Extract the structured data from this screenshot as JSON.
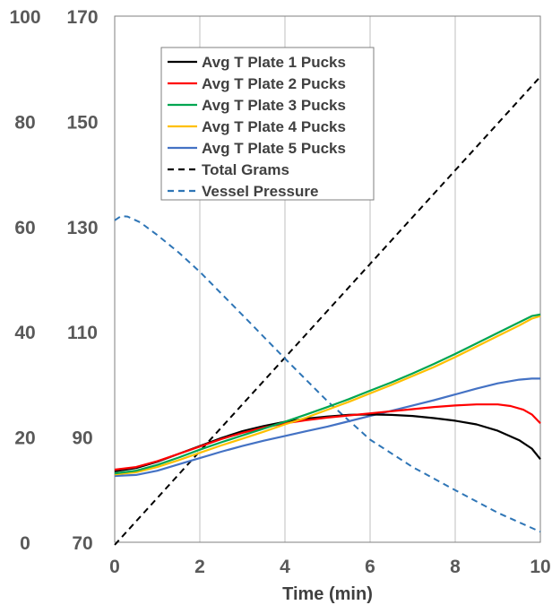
{
  "chart_data": {
    "type": "line",
    "title": "",
    "xlabel": "Time (min)",
    "xlim": [
      0,
      10
    ],
    "x_ticks": [
      "0",
      "2",
      "4",
      "6",
      "8",
      "10"
    ],
    "y_left_outer": {
      "ylim": [
        0,
        100
      ],
      "ticks": [
        "0",
        "20",
        "40",
        "60",
        "80",
        "100"
      ]
    },
    "y_left_inner": {
      "ylim": [
        70,
        170
      ],
      "ticks": [
        "70",
        "90",
        "110",
        "130",
        "150",
        "170"
      ]
    },
    "grid": "vertical",
    "legend_position": "top-left",
    "series": [
      {
        "name": "Avg T Plate 1 Pucks",
        "color": "#000000",
        "dash": "solid",
        "axis": "inner",
        "x": [
          0,
          0.5,
          1,
          1.5,
          2,
          2.5,
          3,
          3.5,
          4,
          4.5,
          5,
          5.5,
          6,
          6.5,
          7,
          7.5,
          8,
          8.5,
          9,
          9.5,
          9.8,
          10
        ],
        "y": [
          83.5,
          84.1,
          85.3,
          86.8,
          88.3,
          89.8,
          91.1,
          92.1,
          92.9,
          93.5,
          93.9,
          94.2,
          94.3,
          94.2,
          94.0,
          93.6,
          93.1,
          92.4,
          91.2,
          89.4,
          87.8,
          85.8
        ]
      },
      {
        "name": "Avg T Plate 2 Pucks",
        "color": "#ff0000",
        "dash": "solid",
        "axis": "inner",
        "x": [
          0,
          0.5,
          1,
          1.5,
          2,
          2.5,
          3,
          3.5,
          4,
          4.5,
          5,
          5.5,
          6,
          6.5,
          7,
          7.5,
          8,
          8.5,
          9,
          9.3,
          9.6,
          9.8,
          10
        ],
        "y": [
          83.8,
          84.3,
          85.4,
          86.8,
          88.2,
          89.6,
          90.8,
          91.8,
          92.6,
          93.2,
          93.7,
          94.1,
          94.5,
          94.9,
          95.3,
          95.7,
          96.0,
          96.2,
          96.2,
          95.9,
          95.2,
          94.3,
          92.6
        ]
      },
      {
        "name": "Avg T Plate 3 Pucks",
        "color": "#00a651",
        "dash": "solid",
        "axis": "inner",
        "x": [
          0,
          0.5,
          1,
          1.5,
          2,
          2.5,
          3,
          3.5,
          4,
          4.5,
          5,
          5.5,
          6,
          6.5,
          7,
          7.5,
          8,
          8.5,
          9,
          9.5,
          9.8,
          10
        ],
        "y": [
          83.1,
          83.6,
          84.7,
          86.1,
          87.6,
          89.0,
          90.3,
          91.6,
          92.9,
          94.3,
          95.7,
          97.2,
          98.8,
          100.4,
          102.1,
          103.9,
          105.8,
          107.8,
          109.8,
          111.8,
          113.0,
          113.3
        ]
      },
      {
        "name": "Avg T Plate 4 Pucks",
        "color": "#ffc000",
        "dash": "solid",
        "axis": "inner",
        "x": [
          0,
          0.5,
          1,
          1.5,
          2,
          2.5,
          3,
          3.5,
          4,
          4.5,
          5,
          5.5,
          6,
          6.5,
          7,
          7.5,
          8,
          8.5,
          9,
          9.5,
          9.8,
          10
        ],
        "y": [
          82.9,
          83.3,
          84.3,
          85.6,
          87.0,
          88.4,
          89.7,
          91.0,
          92.4,
          93.7,
          95.2,
          96.7,
          98.3,
          99.9,
          101.6,
          103.3,
          105.2,
          107.2,
          109.2,
          111.2,
          112.5,
          113.0
        ]
      },
      {
        "name": "Avg T Plate 5 Pucks",
        "color": "#4472c4",
        "dash": "solid",
        "axis": "inner",
        "x": [
          0,
          0.5,
          1,
          1.5,
          2,
          2.5,
          3,
          3.5,
          4,
          4.5,
          5,
          5.5,
          6,
          6.5,
          7,
          7.5,
          8,
          8.5,
          9,
          9.5,
          9.8,
          10
        ],
        "y": [
          82.6,
          82.8,
          83.6,
          84.8,
          86.0,
          87.2,
          88.3,
          89.3,
          90.2,
          91.1,
          92.0,
          93.0,
          94.0,
          95.0,
          96.0,
          97.0,
          98.1,
          99.2,
          100.2,
          100.9,
          101.1,
          101.1
        ]
      },
      {
        "name": "Total Grams",
        "color": "#000000",
        "dash": "dashed",
        "axis": "outer",
        "x": [
          0,
          10
        ],
        "y": [
          -0.5,
          88.5
        ]
      },
      {
        "name": "Vessel Pressure",
        "color": "#2e75b6",
        "dash": "dashed",
        "axis": "inner",
        "x": [
          0,
          0.15,
          0.3,
          0.6,
          1,
          1.5,
          2,
          3,
          4,
          5,
          6,
          7,
          8,
          9,
          10
        ],
        "y": [
          131.2,
          132.0,
          131.9,
          130.8,
          128.4,
          125.1,
          121.4,
          113.2,
          104.9,
          96.8,
          89.5,
          84.3,
          79.9,
          75.6,
          72.0
        ]
      }
    ]
  }
}
